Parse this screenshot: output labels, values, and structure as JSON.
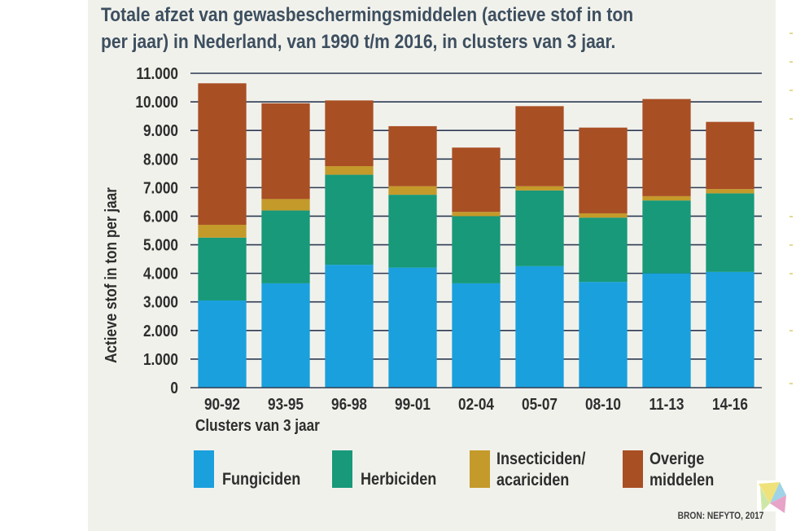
{
  "title_line1": "Totale afzet van gewasbeschermingsmiddelen (actieve stof in ton",
  "title_line2": "per jaar) in Nederland, van 1990 t/m 2016, in clusters van 3 jaar.",
  "source": "BRON: NEFYTO, 2017",
  "chart_data": {
    "type": "bar",
    "stacked": true,
    "xlabel": "Clusters van 3 jaar",
    "ylabel": "Actieve stof in ton per jaar",
    "ylim": [
      0,
      11000
    ],
    "yticks": [
      0,
      1000,
      2000,
      3000,
      4000,
      5000,
      6000,
      7000,
      8000,
      9000,
      10000,
      11000
    ],
    "ytick_labels": [
      "0",
      "1.000",
      "2.000",
      "3.000",
      "4.000",
      "5.000",
      "6.000",
      "7.000",
      "8.000",
      "9.000",
      "10.000",
      "11.000"
    ],
    "grid": true,
    "legend_position": "bottom",
    "categories": [
      "90-92",
      "93-95",
      "96-98",
      "99-01",
      "02-04",
      "05-07",
      "08-10",
      "11-13",
      "14-16"
    ],
    "series": [
      {
        "name": "Fungiciden",
        "color": "#1aa0dd",
        "values": [
          3050,
          3650,
          4300,
          4200,
          3650,
          4250,
          3700,
          4000,
          4050
        ]
      },
      {
        "name": "Herbiciden",
        "color": "#17997a",
        "values": [
          2200,
          2550,
          3150,
          2550,
          2350,
          2650,
          2250,
          2550,
          2750
        ]
      },
      {
        "name": "Insecticiden/\nacariciden",
        "legend_lines": [
          "Insecticiden/",
          "acariciden"
        ],
        "color": "#c49a2a",
        "values": [
          450,
          400,
          300,
          300,
          150,
          150,
          150,
          150,
          150
        ]
      },
      {
        "name": "Overige\nmiddelen",
        "legend_lines": [
          "Overige",
          "middelen"
        ],
        "color": "#a94f24",
        "values": [
          4950,
          3350,
          2300,
          2100,
          2250,
          2800,
          3000,
          3400,
          2350
        ]
      }
    ]
  }
}
